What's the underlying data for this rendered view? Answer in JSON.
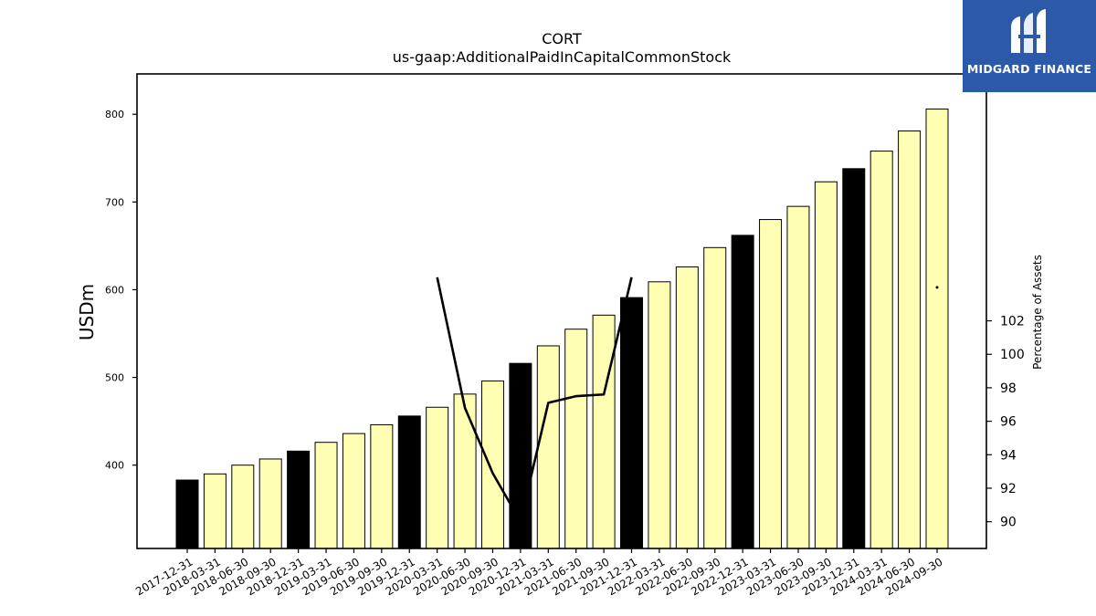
{
  "chart_data": {
    "type": "bar",
    "title": "CORT",
    "subtitle": "us-gaap:AdditionalPaidInCapitalCommonStock",
    "ylabel": "USDm",
    "y2label": "Percentage of Assets",
    "ylim": [
      305,
      846
    ],
    "y2lim": [
      88.4,
      116.75
    ],
    "yticks": [
      400,
      500,
      600,
      700,
      800
    ],
    "y2ticks": [
      90,
      92,
      94,
      96,
      98,
      100,
      102
    ],
    "categories": [
      "2017-12-31",
      "2018-03-31",
      "2018-06-30",
      "2018-09-30",
      "2018-12-31",
      "2019-03-31",
      "2019-06-30",
      "2019-09-30",
      "2019-12-31",
      "2020-03-31",
      "2020-06-30",
      "2020-09-30",
      "2020-12-31",
      "2021-03-31",
      "2021-06-30",
      "2021-09-30",
      "2021-12-31",
      "2022-03-31",
      "2022-06-30",
      "2022-09-30",
      "2022-12-31",
      "2023-03-31",
      "2023-06-30",
      "2023-09-30",
      "2023-12-31",
      "2024-03-31",
      "2024-06-30",
      "2024-09-30"
    ],
    "series": [
      {
        "values": [
          383,
          390,
          400,
          407,
          416,
          426,
          436,
          446,
          456,
          466,
          481,
          496,
          516,
          536,
          555,
          571,
          591,
          609,
          626,
          648,
          662,
          680,
          695,
          723,
          738,
          758,
          781,
          806
        ],
        "year_end_color": "#000000",
        "quarter_color": "#ffffb3",
        "axis": "left"
      },
      {
        "values": [
          null,
          null,
          null,
          null,
          null,
          null,
          null,
          null,
          null,
          104.6,
          96.8,
          92.9,
          90.0,
          97.1,
          97.5,
          97.6,
          104.6,
          null,
          null,
          null,
          null,
          null,
          null,
          null,
          null,
          null,
          null,
          104.0
        ],
        "color": "#000000",
        "axis": "right"
      }
    ],
    "grid": false
  },
  "logo": {
    "brand": "MIDGARD FINANCE",
    "color": "#2c5aa8"
  }
}
